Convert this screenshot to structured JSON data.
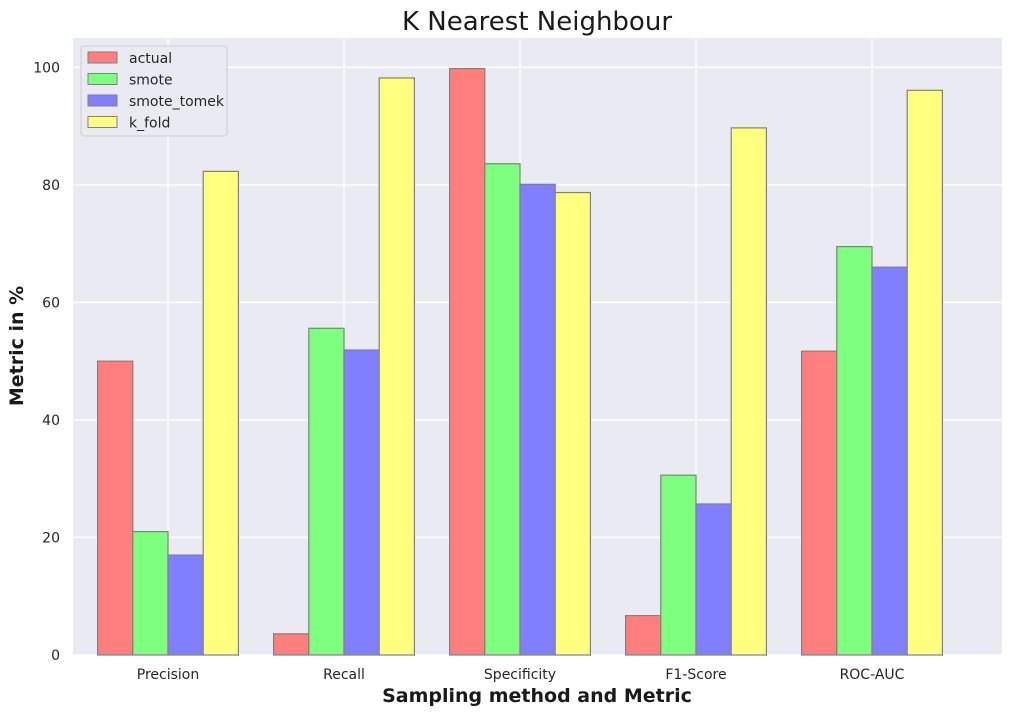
{
  "chart_data": {
    "type": "bar",
    "title": "K Nearest Neighbour",
    "xlabel": "Sampling method and Metric",
    "ylabel": "Metric in %",
    "categories": [
      "Precision",
      "Recall",
      "Specificity",
      "F1-Score",
      "ROC-AUC"
    ],
    "series": [
      {
        "name": "actual",
        "color": "#ff7f7f",
        "values": [
          50.0,
          3.6,
          99.8,
          6.7,
          51.7
        ]
      },
      {
        "name": "smote",
        "color": "#7fff7f",
        "values": [
          21.0,
          55.6,
          83.6,
          30.6,
          69.5
        ]
      },
      {
        "name": "smote_tomek",
        "color": "#7f7fff",
        "values": [
          17.0,
          51.9,
          80.1,
          25.7,
          66.0
        ]
      },
      {
        "name": "k_fold",
        "color": "#ffff7f",
        "values": [
          82.3,
          98.2,
          78.7,
          89.7,
          96.1
        ]
      }
    ],
    "ylim": [
      0,
      105
    ],
    "yticks": [
      0,
      20,
      40,
      60,
      80,
      100
    ],
    "grid": true,
    "legend_position": "top-left",
    "background_color": "#eaeaf2",
    "bar_edge_color": "#808080"
  }
}
